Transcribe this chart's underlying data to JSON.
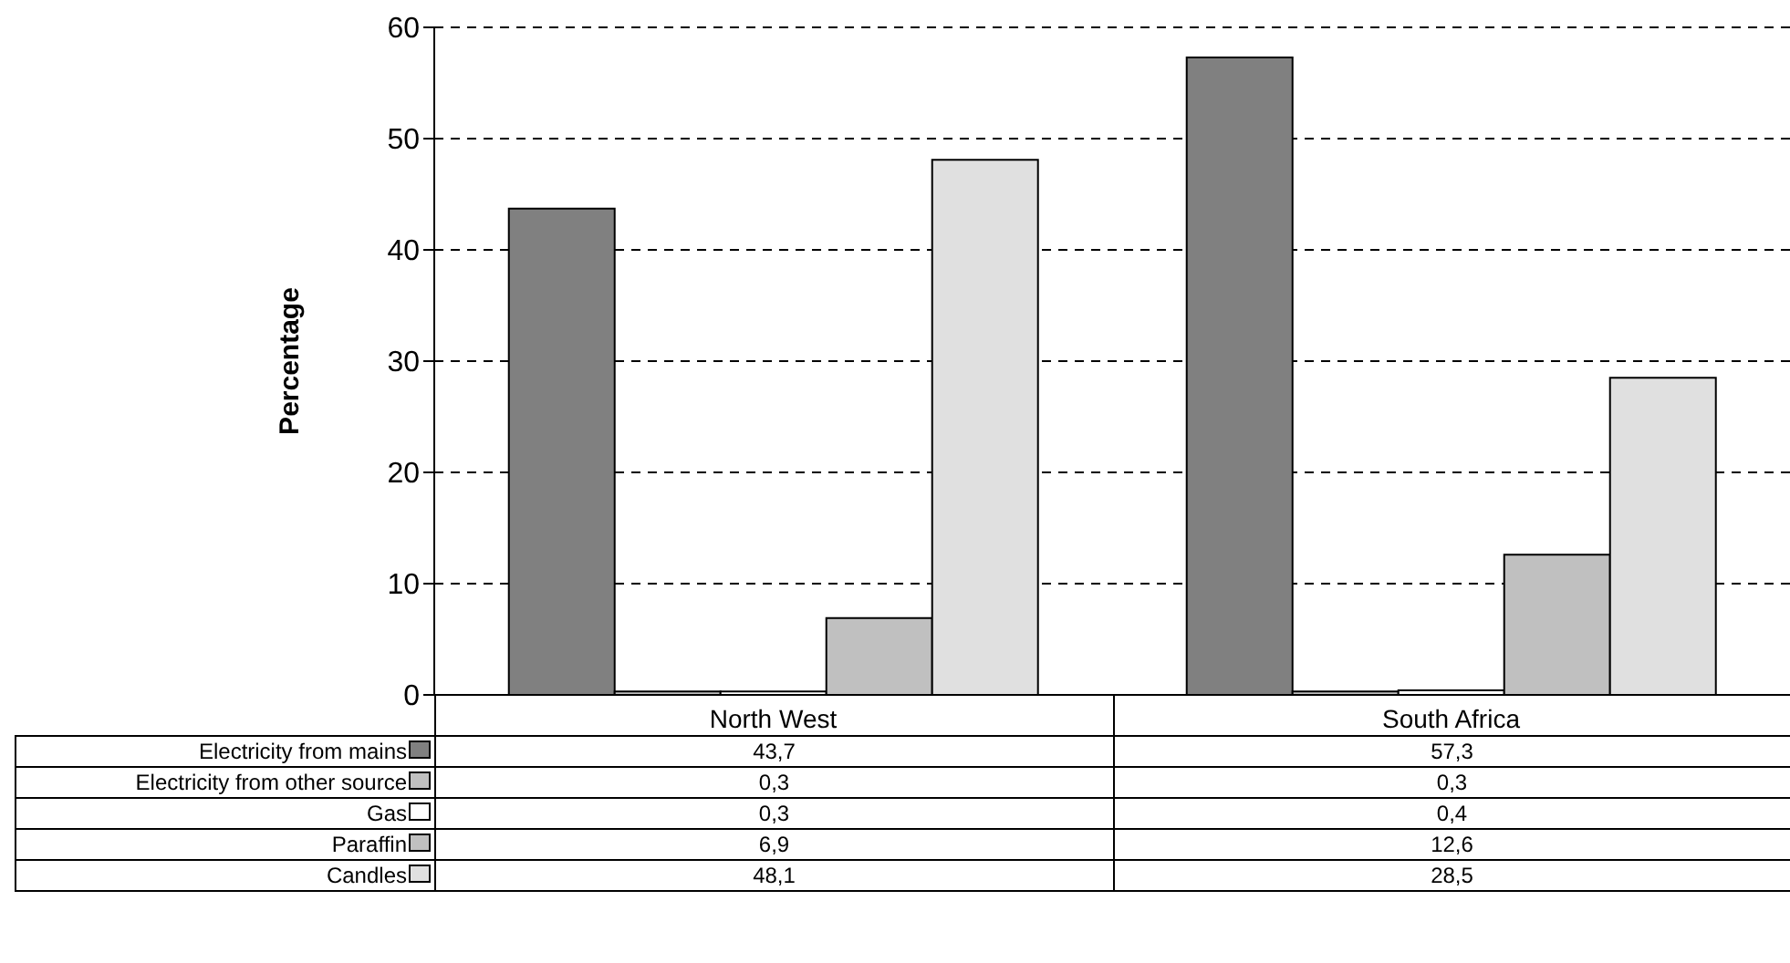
{
  "chart_data": {
    "type": "bar",
    "ylabel": "Percentage",
    "categories": [
      "North West",
      "South Africa"
    ],
    "series": [
      {
        "name": "Electricity from mains",
        "color": "#808080",
        "values": [
          43.7,
          57.3
        ],
        "value_labels": [
          "43,7",
          "57,3"
        ]
      },
      {
        "name": "Electricity from other source",
        "color": "#c0c0c0",
        "values": [
          0.3,
          0.3
        ],
        "value_labels": [
          "0,3",
          "0,3"
        ]
      },
      {
        "name": "Gas",
        "color": "#ffffff",
        "values": [
          0.3,
          0.4
        ],
        "value_labels": [
          "0,3",
          "0,4"
        ]
      },
      {
        "name": "Paraffin",
        "color": "#c0c0c0",
        "values": [
          6.9,
          12.6
        ],
        "value_labels": [
          "6,9",
          "12,6"
        ]
      },
      {
        "name": "Candles",
        "color": "#e0e0e0",
        "values": [
          48.1,
          28.5
        ],
        "value_labels": [
          "48,1",
          "28,5"
        ]
      }
    ],
    "ylim": [
      0,
      60
    ],
    "yticks": [
      0,
      10,
      20,
      30,
      40,
      50,
      60
    ],
    "grid": "y",
    "legend": "bottom left"
  }
}
